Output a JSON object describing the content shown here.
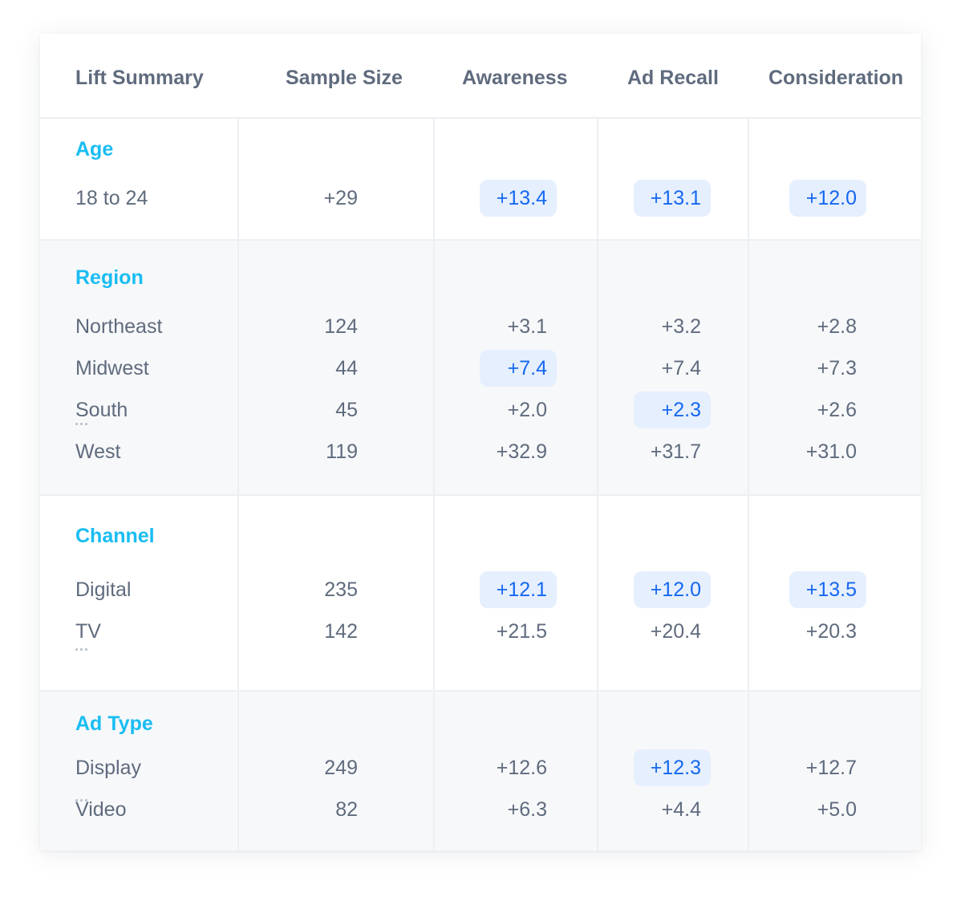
{
  "header": {
    "lift_summary": "Lift Summary",
    "sample_size": "Sample Size",
    "awareness": "Awareness",
    "ad_recall": "Ad Recall",
    "consideration": "Consideration"
  },
  "colors": {
    "section_title": "#19bdf2",
    "highlight_bg": "#e6effe",
    "highlight_text": "#1568f0",
    "text": "#5f6b7d"
  },
  "sections": [
    {
      "title": "Age",
      "rows": [
        {
          "label": "18 to 24",
          "sample": "+29",
          "awareness": "+13.4",
          "ad_recall": "+13.1",
          "consideration": "+12.0",
          "highlighted": [
            "awareness",
            "ad_recall",
            "consideration"
          ]
        }
      ]
    },
    {
      "title": "Region",
      "rows": [
        {
          "label": "Northeast",
          "sample": "124",
          "awareness": "+3.1",
          "ad_recall": "+3.2",
          "consideration": "+2.8",
          "highlighted": []
        },
        {
          "label": "Midwest",
          "sample": "44",
          "awareness": "+7.4",
          "ad_recall": "+7.4",
          "consideration": "+7.3",
          "highlighted": [
            "awareness"
          ]
        },
        {
          "label": "South",
          "sample": "45",
          "awareness": "+2.0",
          "ad_recall": "+2.3",
          "consideration": "+2.6",
          "highlighted": [
            "ad_recall"
          ]
        },
        {
          "label": "West",
          "sample": "119",
          "awareness": "+32.9",
          "ad_recall": "+31.7",
          "consideration": "+31.0",
          "highlighted": []
        }
      ]
    },
    {
      "title": "Channel",
      "rows": [
        {
          "label": "Digital",
          "sample": "235",
          "awareness": "+12.1",
          "ad_recall": "+12.0",
          "consideration": "+13.5",
          "highlighted": [
            "awareness",
            "ad_recall",
            "consideration"
          ]
        },
        {
          "label": "TV",
          "sample": "142",
          "awareness": "+21.5",
          "ad_recall": "+20.4",
          "consideration": "+20.3",
          "highlighted": []
        }
      ]
    },
    {
      "title": "Ad Type",
      "rows": [
        {
          "label": "Display",
          "sample": "249",
          "awareness": "+12.6",
          "ad_recall": "+12.3",
          "consideration": "+12.7",
          "highlighted": [
            "ad_recall"
          ]
        },
        {
          "label": "Video",
          "sample": "82",
          "awareness": "+6.3",
          "ad_recall": "+4.4",
          "consideration": "+5.0",
          "highlighted": []
        }
      ]
    }
  ]
}
